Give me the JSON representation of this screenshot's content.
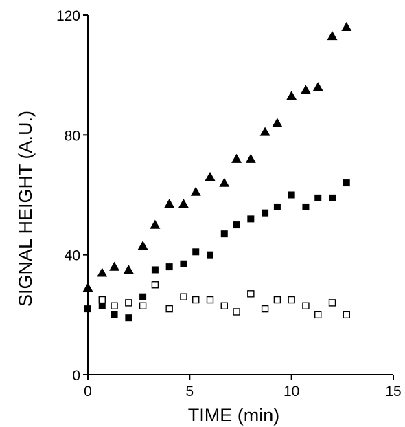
{
  "chart_data": {
    "type": "scatter",
    "xlabel": "TIME (min)",
    "ylabel": "SIGNAL HEIGHT (A.U.)",
    "xlim": [
      0,
      15
    ],
    "ylim": [
      0,
      120
    ],
    "xticks": [
      0,
      5,
      10,
      15
    ],
    "yticks": [
      0,
      40,
      80,
      120
    ],
    "grid": false,
    "legend": "none",
    "series": [
      {
        "marker": "filled-triangle",
        "color": "#000000",
        "points": [
          [
            0,
            29
          ],
          [
            0.7,
            34
          ],
          [
            1.3,
            36
          ],
          [
            2.0,
            35
          ],
          [
            2.7,
            43
          ],
          [
            3.3,
            50
          ],
          [
            4.0,
            57
          ],
          [
            4.7,
            57
          ],
          [
            5.3,
            61
          ],
          [
            6.0,
            66
          ],
          [
            6.7,
            64
          ],
          [
            7.3,
            72
          ],
          [
            8.0,
            72
          ],
          [
            8.7,
            81
          ],
          [
            9.3,
            84
          ],
          [
            10.0,
            93
          ],
          [
            10.7,
            95
          ],
          [
            11.3,
            96
          ],
          [
            12.0,
            113
          ],
          [
            12.7,
            116
          ]
        ]
      },
      {
        "marker": "filled-square",
        "color": "#000000",
        "points": [
          [
            0,
            22
          ],
          [
            0.7,
            23
          ],
          [
            1.3,
            20
          ],
          [
            2.0,
            19
          ],
          [
            2.7,
            26
          ],
          [
            3.3,
            35
          ],
          [
            4.0,
            36
          ],
          [
            4.7,
            37
          ],
          [
            5.3,
            41
          ],
          [
            6.0,
            40
          ],
          [
            6.7,
            47
          ],
          [
            7.3,
            50
          ],
          [
            8.0,
            52
          ],
          [
            8.7,
            54
          ],
          [
            9.3,
            56
          ],
          [
            10.0,
            60
          ],
          [
            10.7,
            56
          ],
          [
            11.3,
            59
          ],
          [
            12.0,
            59
          ],
          [
            12.7,
            64
          ]
        ]
      },
      {
        "marker": "open-square",
        "color": "#000000",
        "points": [
          [
            0.7,
            25
          ],
          [
            1.3,
            23
          ],
          [
            2.0,
            24
          ],
          [
            2.7,
            23
          ],
          [
            3.3,
            30
          ],
          [
            4.0,
            22
          ],
          [
            4.7,
            26
          ],
          [
            5.3,
            25
          ],
          [
            6.0,
            25
          ],
          [
            6.7,
            23
          ],
          [
            7.3,
            21
          ],
          [
            8.0,
            27
          ],
          [
            8.7,
            22
          ],
          [
            9.3,
            25
          ],
          [
            10.0,
            25
          ],
          [
            10.7,
            23
          ],
          [
            11.3,
            20
          ],
          [
            12.0,
            24
          ],
          [
            12.7,
            20
          ]
        ]
      }
    ]
  }
}
